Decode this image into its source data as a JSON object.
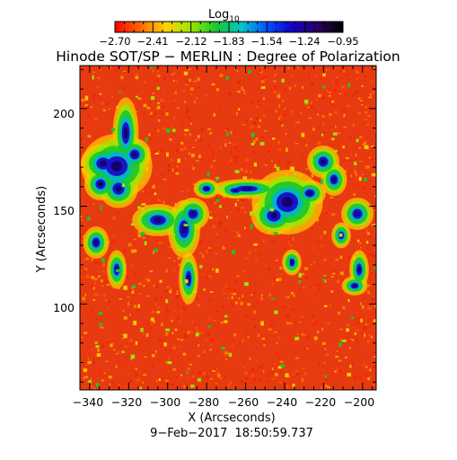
{
  "colorbar": {
    "label_main": "Log",
    "label_sub": "10",
    "tick_labels": [
      "−2.70",
      "−2.41",
      "−2.12",
      "−1.83",
      "−1.54",
      "−1.24",
      "−0.95"
    ],
    "range": [
      -2.7,
      -0.95
    ],
    "colormap": [
      "#ff0000",
      "#ff6a00",
      "#ffd200",
      "#9be600",
      "#16c832",
      "#00c8c8",
      "#0050ff",
      "#1400c8",
      "#2a0060",
      "#000000"
    ]
  },
  "title": "Hinode SOT/SP − MERLIN : Degree of Polarization",
  "xaxis": {
    "label": "X (Arcseconds)",
    "ticks": [
      -340,
      -320,
      -300,
      -280,
      -260,
      -240,
      -220,
      -200
    ],
    "tick_labels": [
      "−340",
      "−320",
      "−300",
      "−280",
      "−260",
      "−240",
      "−220",
      "−200"
    ],
    "range": [
      -345,
      -193
    ]
  },
  "yaxis": {
    "label": "Y (Arcseconds)",
    "ticks": [
      100,
      150,
      200
    ],
    "tick_labels": [
      "100",
      "150",
      "200"
    ],
    "range": [
      56,
      222
    ]
  },
  "timestamp": "9−Feb−2017  18:50:59.737",
  "colors": {
    "background_field": "#e83a10",
    "strong_field": "#1a14c8"
  }
}
